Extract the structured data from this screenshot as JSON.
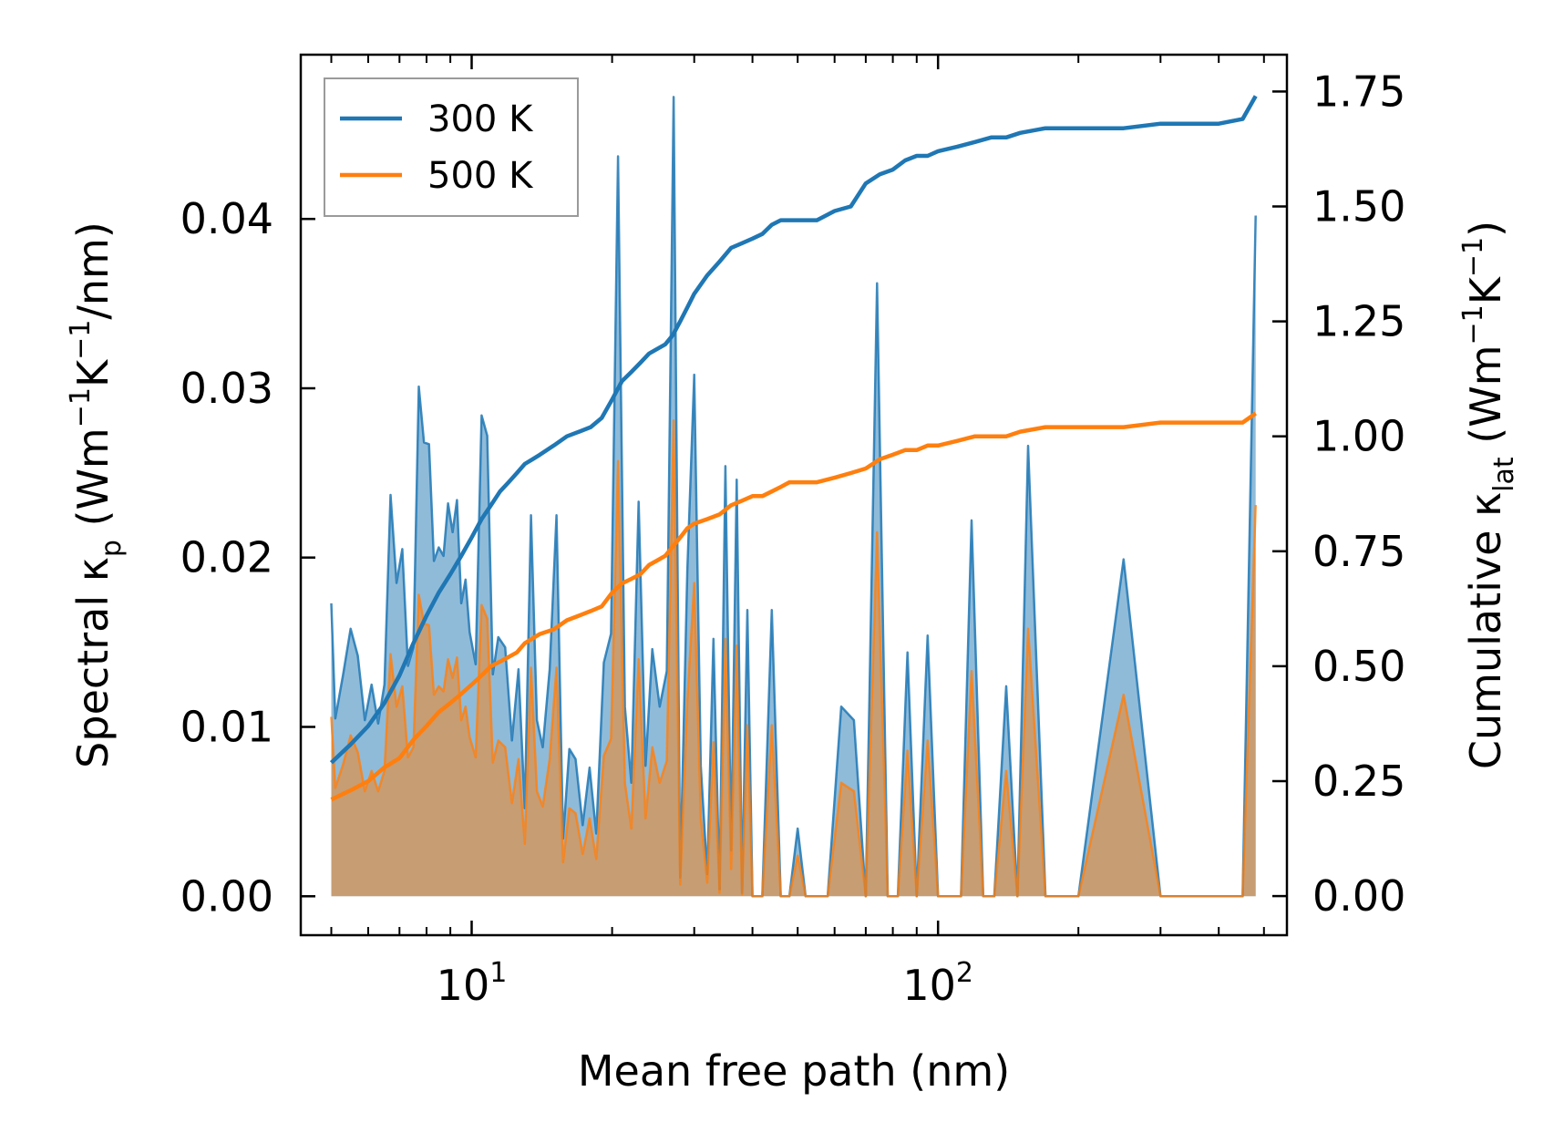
{
  "chart_data": {
    "type": "line",
    "xscale": "log",
    "xlabel": "Mean free path (nm)",
    "xlim": [
      4.3,
      560
    ],
    "xticks": [
      {
        "value": 10,
        "base": "10",
        "exp": "1"
      },
      {
        "value": 100,
        "base": "10",
        "exp": "2"
      }
    ],
    "ylabel_left": {
      "main": "Spectral κ",
      "sub": "p",
      "unit_open": " (Wm",
      "sup1": "−1",
      "mid": "K",
      "sup2": "−1",
      "unit_close": "/nm)"
    },
    "ylabel_right": {
      "main": "Cumulative κ",
      "sub": "lat",
      "unit_open": " (Wm",
      "sup1": "−1",
      "mid": "K",
      "sup2": "−1",
      "unit_close": ")"
    },
    "ylim_left": [
      -0.0023,
      0.0497
    ],
    "ylim_right": [
      -0.085,
      1.83
    ],
    "yticks_left": [
      0.0,
      0.01,
      0.02,
      0.03,
      0.04
    ],
    "yticks_left_labels": [
      "0.00",
      "0.01",
      "0.02",
      "0.03",
      "0.04"
    ],
    "yticks_right": [
      0.0,
      0.25,
      0.5,
      0.75,
      1.0,
      1.25,
      1.5,
      1.75
    ],
    "yticks_right_labels": [
      "0.00",
      "0.25",
      "0.50",
      "0.75",
      "1.00",
      "1.25",
      "1.50",
      "1.75"
    ],
    "legend": {
      "position": "upper-left",
      "entries": [
        {
          "label": "300 K",
          "color": "#1f77b4"
        },
        {
          "label": "500 K",
          "color": "#ff7f0e"
        }
      ]
    },
    "spectral_series": [
      {
        "name": "300 K",
        "color": "#1f77b4",
        "x": [
          5.0,
          5.1,
          5.3,
          5.5,
          5.7,
          5.9,
          6.1,
          6.3,
          6.5,
          6.7,
          6.9,
          7.1,
          7.3,
          7.5,
          7.7,
          7.9,
          8.1,
          8.3,
          8.5,
          8.7,
          8.9,
          9.1,
          9.3,
          9.5,
          9.7,
          9.9,
          10.2,
          10.5,
          10.8,
          11.1,
          11.4,
          11.8,
          12.2,
          12.6,
          13.0,
          13.4,
          13.8,
          14.2,
          14.7,
          15.2,
          15.7,
          16.2,
          16.7,
          17.3,
          17.9,
          18.5,
          19.2,
          19.9,
          20.6,
          21.3,
          22.0,
          22.8,
          23.6,
          24.4,
          25.3,
          26.2,
          27.1,
          28.0,
          29.0,
          30.0,
          31.0,
          32.0,
          33.0,
          34.0,
          35.0,
          36.0,
          37.0,
          38.0,
          39.0,
          40.0,
          42.0,
          44.0,
          46.0,
          48.0,
          50.0,
          52.0,
          55.0,
          58.0,
          62.0,
          66.0,
          70.0,
          74.0,
          78.0,
          82.0,
          86.0,
          90.0,
          95.0,
          100.0,
          106.0,
          112.0,
          118.0,
          125.0,
          132.0,
          140.0,
          148.0,
          156.0,
          170.0,
          200.0,
          250.0,
          300.0,
          350.0,
          400.0,
          450.0,
          480.0
        ],
        "values": [
          0.0173,
          0.0105,
          0.0131,
          0.0158,
          0.0142,
          0.0104,
          0.0125,
          0.0102,
          0.0125,
          0.0237,
          0.0185,
          0.0205,
          0.0136,
          0.0147,
          0.0301,
          0.0268,
          0.0267,
          0.0198,
          0.0206,
          0.0201,
          0.0232,
          0.0215,
          0.0234,
          0.0173,
          0.0187,
          0.0156,
          0.0137,
          0.0284,
          0.0272,
          0.0131,
          0.0153,
          0.0147,
          0.0092,
          0.0134,
          0.0052,
          0.0225,
          0.0104,
          0.0088,
          0.0134,
          0.0225,
          0.0034,
          0.0087,
          0.0081,
          0.0042,
          0.0076,
          0.0037,
          0.0138,
          0.0155,
          0.0437,
          0.0112,
          0.0067,
          0.0233,
          0.0077,
          0.0146,
          0.0112,
          0.0133,
          0.0472,
          0.0011,
          0.0192,
          0.0308,
          0.0077,
          0.0013,
          0.0152,
          0.0004,
          0.0254,
          0.0027,
          0.0246,
          0.0002,
          0.0169,
          0.0,
          0.0,
          0.0169,
          0.0,
          0.0,
          0.004,
          0.0,
          0.0,
          0.0,
          0.0112,
          0.0104,
          0.0,
          0.0362,
          0.0,
          0.0,
          0.0144,
          0.0,
          0.0154,
          0.0,
          0.0,
          0.0,
          0.0222,
          0.0,
          0.0,
          0.0124,
          0.0,
          0.0266,
          0.0,
          0.0,
          0.0199,
          0.0,
          0.0,
          0.0,
          0.0,
          0.0402
        ]
      },
      {
        "name": "500 K",
        "color": "#ff7f0e",
        "x": [
          5.0,
          5.1,
          5.3,
          5.5,
          5.7,
          5.9,
          6.1,
          6.3,
          6.5,
          6.7,
          6.9,
          7.1,
          7.3,
          7.5,
          7.7,
          7.9,
          8.1,
          8.3,
          8.5,
          8.7,
          8.9,
          9.1,
          9.3,
          9.5,
          9.7,
          9.9,
          10.2,
          10.5,
          10.8,
          11.1,
          11.4,
          11.8,
          12.2,
          12.6,
          13.0,
          13.4,
          13.8,
          14.2,
          14.7,
          15.2,
          15.7,
          16.2,
          16.7,
          17.3,
          17.9,
          18.5,
          19.2,
          19.9,
          20.6,
          21.3,
          22.0,
          22.8,
          23.6,
          24.4,
          25.3,
          26.2,
          27.1,
          28.0,
          29.0,
          30.0,
          31.0,
          32.0,
          33.0,
          34.0,
          35.0,
          36.0,
          37.0,
          38.0,
          39.0,
          40.0,
          42.0,
          44.0,
          46.0,
          48.0,
          50.0,
          52.0,
          55.0,
          58.0,
          62.0,
          66.0,
          70.0,
          74.0,
          78.0,
          82.0,
          86.0,
          90.0,
          95.0,
          100.0,
          106.0,
          112.0,
          118.0,
          125.0,
          132.0,
          140.0,
          148.0,
          156.0,
          170.0,
          200.0,
          250.0,
          300.0,
          350.0,
          400.0,
          450.0,
          480.0
        ],
        "values": [
          0.0106,
          0.0064,
          0.0078,
          0.0095,
          0.0085,
          0.0062,
          0.0074,
          0.0062,
          0.0074,
          0.0143,
          0.0112,
          0.0124,
          0.0082,
          0.0088,
          0.0178,
          0.0161,
          0.016,
          0.0119,
          0.0124,
          0.0121,
          0.014,
          0.0129,
          0.0141,
          0.0104,
          0.0112,
          0.0094,
          0.0082,
          0.0172,
          0.0164,
          0.0079,
          0.0092,
          0.0088,
          0.0055,
          0.0081,
          0.0031,
          0.0135,
          0.0062,
          0.0053,
          0.0081,
          0.0135,
          0.002,
          0.0052,
          0.0049,
          0.0025,
          0.0046,
          0.0022,
          0.0083,
          0.0093,
          0.0257,
          0.0067,
          0.004,
          0.014,
          0.0046,
          0.0088,
          0.0067,
          0.008,
          0.0281,
          0.0007,
          0.0115,
          0.0185,
          0.0046,
          0.0008,
          0.0091,
          0.0002,
          0.0152,
          0.0016,
          0.0148,
          0.0001,
          0.0101,
          0.0,
          0.0,
          0.0101,
          0.0,
          0.0,
          0.0024,
          0.0,
          0.0,
          0.0,
          0.0067,
          0.0062,
          0.0,
          0.0215,
          0.0,
          0.0,
          0.0086,
          0.0,
          0.0092,
          0.0,
          0.0,
          0.0,
          0.0133,
          0.0,
          0.0,
          0.0074,
          0.0,
          0.0158,
          0.0,
          0.0,
          0.0119,
          0.0,
          0.0,
          0.0,
          0.0,
          0.0231
        ]
      }
    ],
    "cumulative_series": [
      {
        "name": "300 K",
        "color": "#1f77b4",
        "x": [
          5.0,
          5.5,
          6.0,
          6.5,
          7.0,
          7.5,
          8.0,
          8.5,
          9.0,
          9.5,
          10.0,
          10.5,
          11.0,
          11.5,
          12.0,
          12.5,
          13.0,
          13.5,
          14.0,
          15.0,
          16.0,
          17.0,
          18.0,
          19.0,
          20.0,
          21.0,
          22.0,
          23.0,
          24.0,
          25.0,
          26.0,
          27.0,
          28.0,
          29.0,
          30.0,
          32.0,
          34.0,
          36.0,
          38.0,
          40.0,
          42.0,
          44.0,
          46.0,
          48.0,
          50.0,
          55.0,
          60.0,
          65.0,
          70.0,
          75.0,
          80.0,
          85.0,
          90.0,
          95.0,
          100.0,
          110.0,
          120.0,
          130.0,
          140.0,
          150.0,
          170.0,
          200.0,
          250.0,
          300.0,
          350.0,
          400.0,
          450.0,
          480.0
        ],
        "values": [
          0.29,
          0.33,
          0.37,
          0.42,
          0.48,
          0.55,
          0.61,
          0.66,
          0.7,
          0.74,
          0.78,
          0.82,
          0.85,
          0.88,
          0.9,
          0.92,
          0.94,
          0.95,
          0.96,
          0.98,
          1.0,
          1.01,
          1.02,
          1.04,
          1.08,
          1.12,
          1.14,
          1.16,
          1.18,
          1.19,
          1.2,
          1.22,
          1.25,
          1.28,
          1.31,
          1.35,
          1.38,
          1.41,
          1.42,
          1.43,
          1.44,
          1.46,
          1.47,
          1.47,
          1.47,
          1.47,
          1.49,
          1.5,
          1.55,
          1.57,
          1.58,
          1.6,
          1.61,
          1.61,
          1.62,
          1.63,
          1.64,
          1.65,
          1.65,
          1.66,
          1.67,
          1.67,
          1.67,
          1.68,
          1.68,
          1.68,
          1.69,
          1.74
        ]
      },
      {
        "name": "500 K",
        "color": "#ff7f0e",
        "x": [
          5.0,
          5.5,
          6.0,
          6.5,
          7.0,
          7.5,
          8.0,
          8.5,
          9.0,
          9.5,
          10.0,
          10.5,
          11.0,
          11.5,
          12.0,
          12.5,
          13.0,
          13.5,
          14.0,
          15.0,
          16.0,
          17.0,
          18.0,
          19.0,
          20.0,
          21.0,
          22.0,
          23.0,
          24.0,
          25.0,
          26.0,
          27.0,
          28.0,
          29.0,
          30.0,
          32.0,
          34.0,
          36.0,
          38.0,
          40.0,
          42.0,
          44.0,
          46.0,
          48.0,
          50.0,
          55.0,
          60.0,
          65.0,
          70.0,
          75.0,
          80.0,
          85.0,
          90.0,
          95.0,
          100.0,
          110.0,
          120.0,
          130.0,
          140.0,
          150.0,
          170.0,
          200.0,
          250.0,
          300.0,
          350.0,
          400.0,
          450.0,
          480.0
        ],
        "values": [
          0.21,
          0.23,
          0.25,
          0.28,
          0.3,
          0.34,
          0.37,
          0.4,
          0.42,
          0.44,
          0.46,
          0.48,
          0.5,
          0.51,
          0.52,
          0.53,
          0.55,
          0.56,
          0.57,
          0.58,
          0.6,
          0.61,
          0.62,
          0.63,
          0.66,
          0.68,
          0.69,
          0.7,
          0.72,
          0.73,
          0.74,
          0.76,
          0.78,
          0.8,
          0.81,
          0.82,
          0.83,
          0.85,
          0.86,
          0.87,
          0.87,
          0.88,
          0.89,
          0.9,
          0.9,
          0.9,
          0.91,
          0.92,
          0.93,
          0.95,
          0.96,
          0.97,
          0.97,
          0.98,
          0.98,
          0.99,
          1.0,
          1.0,
          1.0,
          1.01,
          1.02,
          1.02,
          1.02,
          1.03,
          1.03,
          1.03,
          1.03,
          1.05
        ]
      }
    ]
  }
}
